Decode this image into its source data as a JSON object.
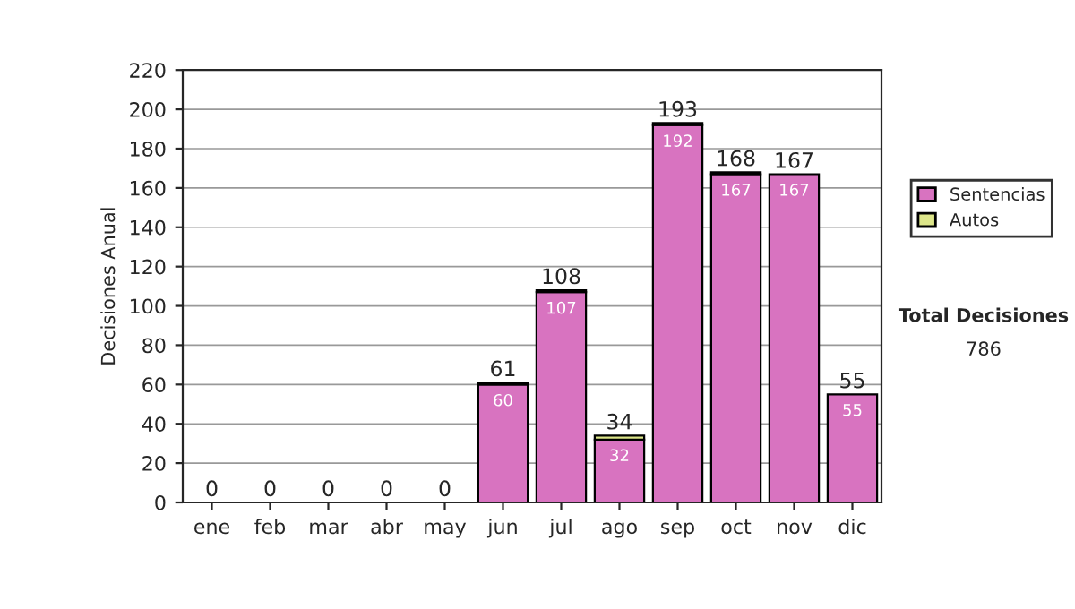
{
  "chart_data": {
    "type": "bar",
    "stacked": true,
    "ylabel": "Decisiones Anual",
    "categories": [
      "ene",
      "feb",
      "mar",
      "abr",
      "may",
      "jun",
      "jul",
      "ago",
      "sep",
      "oct",
      "nov",
      "dic"
    ],
    "series": [
      {
        "name": "Sentencias",
        "color": "#d873c0",
        "values": [
          0,
          0,
          0,
          0,
          0,
          60,
          107,
          32,
          192,
          167,
          167,
          55
        ],
        "value_labels": [
          null,
          null,
          null,
          null,
          null,
          "60",
          "107",
          "32",
          "192",
          "167",
          "167",
          "55"
        ]
      },
      {
        "name": "Autos",
        "color": "#dde68a",
        "values": [
          0,
          0,
          0,
          0,
          0,
          1,
          1,
          2,
          1,
          1,
          0,
          0
        ]
      }
    ],
    "totals": [
      "0",
      "0",
      "0",
      "0",
      "0",
      "61",
      "108",
      "34",
      "193",
      "168",
      "167",
      "55"
    ],
    "ylim": [
      0,
      220
    ],
    "yticks": [
      0,
      20,
      40,
      60,
      80,
      100,
      120,
      140,
      160,
      180,
      200,
      220
    ],
    "grid": "y",
    "legend": "right",
    "annotations": [
      "Total Decisiones",
      "786"
    ]
  }
}
